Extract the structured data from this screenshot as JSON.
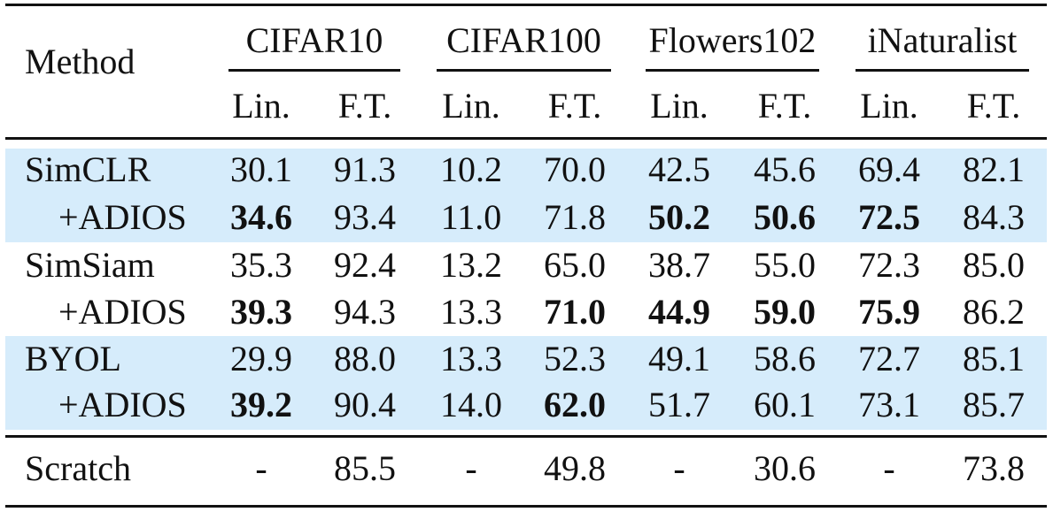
{
  "header": {
    "method": "Method",
    "datasets": [
      "CIFAR10",
      "CIFAR100",
      "Flowers102",
      "iNaturalist"
    ],
    "subheaders": [
      "Lin.",
      "F.T.",
      "Lin.",
      "F.T.",
      "Lin.",
      "F.T.",
      "Lin.",
      "F.T."
    ]
  },
  "rows": [
    {
      "label": "SimCLR",
      "values": [
        "30.1",
        "91.3",
        "10.2",
        "70.0",
        "42.5",
        "45.6",
        "69.4",
        "82.1"
      ],
      "bold": [
        false,
        false,
        false,
        false,
        false,
        false,
        false,
        false
      ],
      "shaded": true
    },
    {
      "label": "+ADIOS",
      "values": [
        "34.6",
        "93.4",
        "11.0",
        "71.8",
        "50.2",
        "50.6",
        "72.5",
        "84.3"
      ],
      "bold": [
        true,
        false,
        false,
        false,
        true,
        true,
        true,
        false
      ],
      "shaded": true
    },
    {
      "label": "SimSiam",
      "values": [
        "35.3",
        "92.4",
        "13.2",
        "65.0",
        "38.7",
        "55.0",
        "72.3",
        "85.0"
      ],
      "bold": [
        false,
        false,
        false,
        false,
        false,
        false,
        false,
        false
      ],
      "shaded": false
    },
    {
      "label": "+ADIOS",
      "values": [
        "39.3",
        "94.3",
        "13.3",
        "71.0",
        "44.9",
        "59.0",
        "75.9",
        "86.2"
      ],
      "bold": [
        true,
        false,
        false,
        true,
        true,
        true,
        true,
        false
      ],
      "shaded": false
    },
    {
      "label": "BYOL",
      "values": [
        "29.9",
        "88.0",
        "13.3",
        "52.3",
        "49.1",
        "58.6",
        "72.7",
        "85.1"
      ],
      "bold": [
        false,
        false,
        false,
        false,
        false,
        false,
        false,
        false
      ],
      "shaded": true
    },
    {
      "label": "+ADIOS",
      "values": [
        "39.2",
        "90.4",
        "14.0",
        "62.0",
        "51.7",
        "60.1",
        "73.1",
        "85.7"
      ],
      "bold": [
        true,
        false,
        false,
        true,
        false,
        false,
        false,
        false
      ],
      "shaded": true
    },
    {
      "label": "Scratch",
      "values": [
        "-",
        "85.5",
        "-",
        "49.8",
        "-",
        "30.6",
        "-",
        "73.8"
      ],
      "bold": [
        false,
        false,
        false,
        false,
        false,
        false,
        false,
        false
      ],
      "shaded": false
    }
  ],
  "colors": {
    "shade": "#d6ecfb",
    "rule": "#111111"
  }
}
